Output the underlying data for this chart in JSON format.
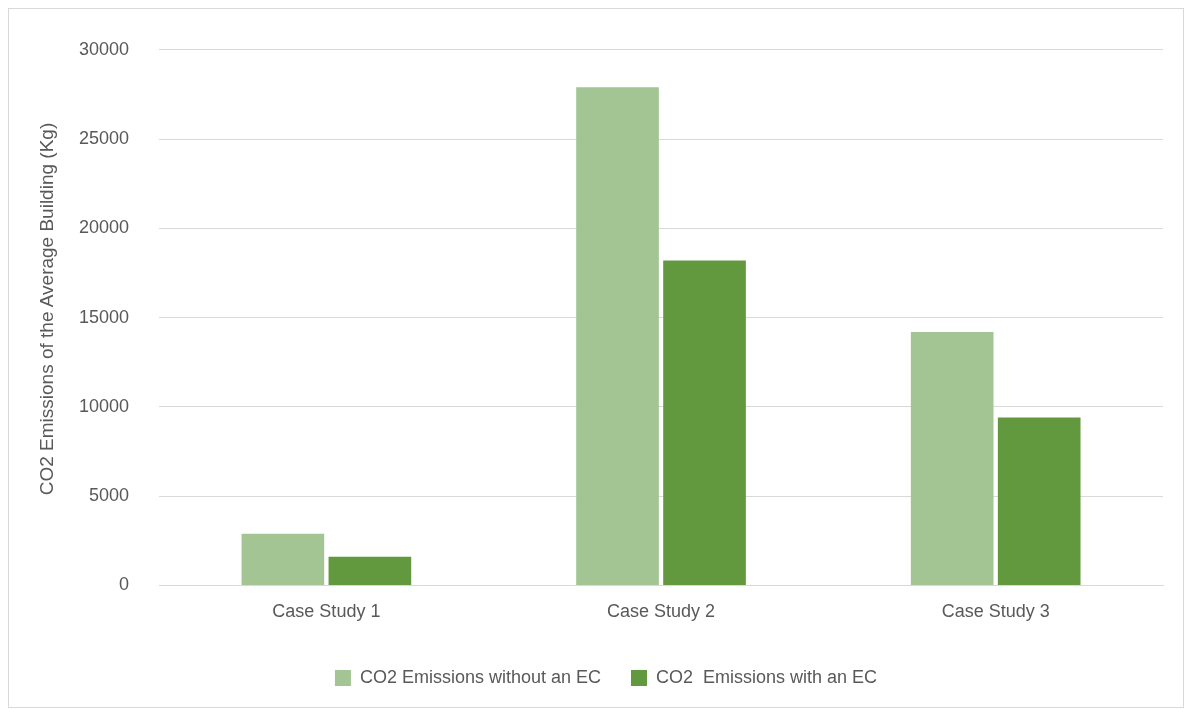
{
  "chart_data": {
    "type": "bar",
    "ylabel": "CO2 Emissions of the Average Building (Kg)",
    "categories": [
      "Case Study 1",
      "Case Study 2",
      "Case Study 3"
    ],
    "series": [
      {
        "name": "CO2 Emissions without an EC",
        "color": "#a2c593",
        "values": [
          2900,
          27900,
          14200
        ]
      },
      {
        "name": "CO2  Emissions with an EC",
        "color": "#62993e",
        "values": [
          1600,
          18200,
          9400
        ]
      }
    ],
    "ylim": [
      0,
      30000
    ],
    "yticks": [
      0,
      5000,
      10000,
      15000,
      20000,
      25000,
      30000
    ],
    "grid": "y",
    "legend": "bottom"
  }
}
